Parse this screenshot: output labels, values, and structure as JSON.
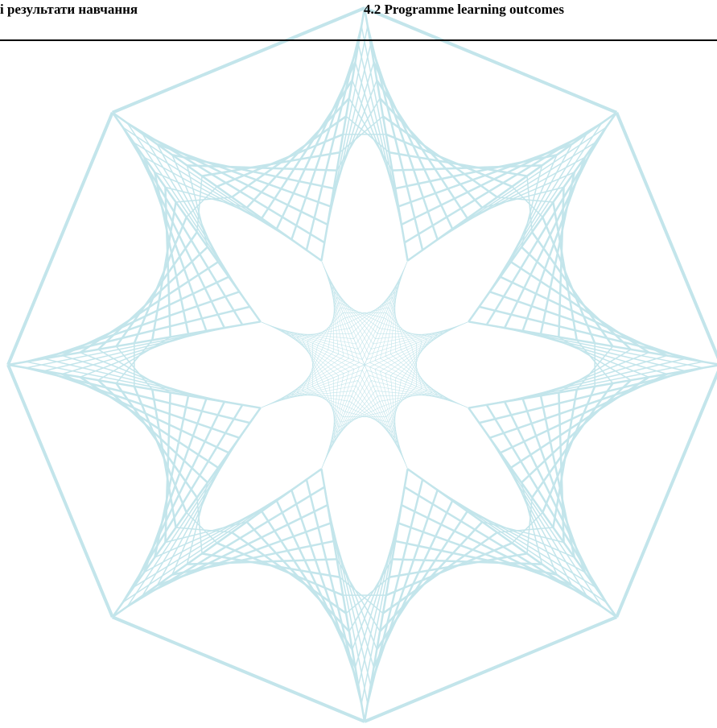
{
  "header": {
    "left": "і результати навчання",
    "right": "4.2 Programme learning outcomes"
  }
}
